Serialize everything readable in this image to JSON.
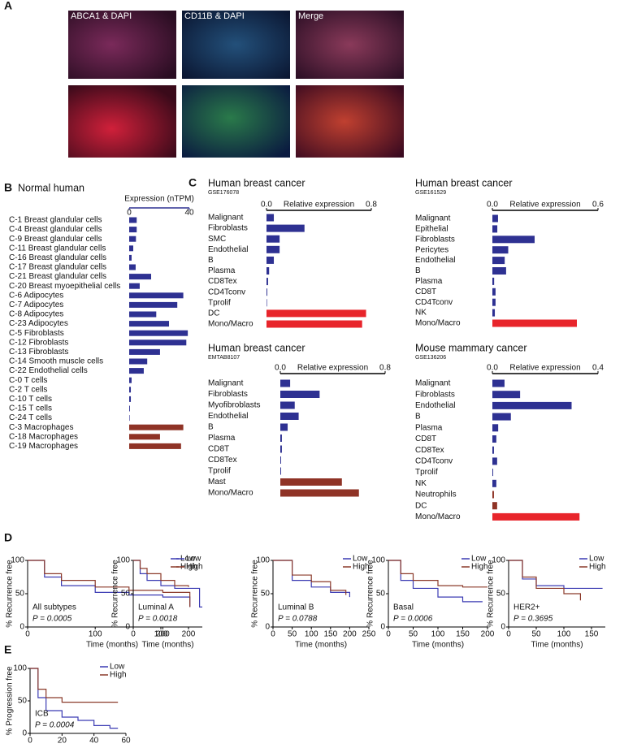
{
  "panel_labels": [
    "A",
    "B",
    "C",
    "D",
    "E"
  ],
  "images": {
    "labels": [
      "ABCA1 & DAPI",
      "CD11B & DAPI",
      "Merge"
    ]
  },
  "chart_data": [
    {
      "type": "hbar",
      "title": "Normal human",
      "xlabel": "Expression (nTPM)",
      "categories": [
        "C-1 Breast glandular cells",
        "C-4 Breast glandular cells",
        "C-9 Breast glandular cells",
        "C-11 Breast glandular cells",
        "C-16 Breast glandular cells",
        "C-17 Breast glandular cells",
        "C-21 Breast glandular cells",
        "C-20 Breast myoepithelial cells",
        "C-6 Adipocytes",
        "C-7 Adipocytes",
        "C-8 Adipocytes",
        "C-23 Adipocytes",
        "C-5 Fibroblasts",
        "C-12 Fibroblasts",
        "C-13 Fibroblasts",
        "C-14 Smooth muscle cells",
        "C-22 Endothelial cells",
        "C-0 T cells",
        "C-2 T cells",
        "C-10 T cells",
        "C-15 T cells",
        "C-24 T cells",
        "C-3 Macrophages",
        "C-18 Macrophages",
        "C-19 Macrophages"
      ],
      "values": [
        5,
        5,
        4.5,
        2.7,
        1.6,
        4.3,
        14.6,
        7,
        36,
        32,
        18,
        26.5,
        39,
        38,
        20.5,
        12,
        9.7,
        1.6,
        1.1,
        1.1,
        0.5,
        0.2,
        36,
        20.5,
        34.5
      ],
      "colors": [
        "#2e3192",
        "#2e3192",
        "#2e3192",
        "#2e3192",
        "#2e3192",
        "#2e3192",
        "#2e3192",
        "#2e3192",
        "#2e3192",
        "#2e3192",
        "#2e3192",
        "#2e3192",
        "#2e3192",
        "#2e3192",
        "#2e3192",
        "#2e3192",
        "#2e3192",
        "#2e3192",
        "#2e3192",
        "#2e3192",
        "#2e3192",
        "#2e3192",
        "#8f3326",
        "#8f3326",
        "#8f3326"
      ],
      "xlim": [
        0,
        40
      ],
      "xticks": [
        0,
        40
      ]
    },
    {
      "type": "hbar",
      "title": "Human breast cancer",
      "subtitle": "GSE176078",
      "xlabel": "Relative expression",
      "categories": [
        "Malignant",
        "Fibroblasts",
        "SMC",
        "Endothelial",
        "B",
        "Plasma",
        "CD8Tex",
        "CD4Tconv",
        "Tprolif",
        "DC",
        "Mono/Macro"
      ],
      "values": [
        0.056,
        0.29,
        0.1,
        0.1,
        0.056,
        0.02,
        0.012,
        0.006,
        0.003,
        0.76,
        0.73
      ],
      "colors": [
        "#2e3192",
        "#2e3192",
        "#2e3192",
        "#2e3192",
        "#2e3192",
        "#2e3192",
        "#2e3192",
        "#2e3192",
        "#2e3192",
        "#e8252b",
        "#e8252b"
      ],
      "xlim": [
        0,
        0.8
      ],
      "xticks": [
        {
          "value": 0,
          "label": "0.0"
        },
        0.8
      ]
    },
    {
      "type": "hbar",
      "title": "Human breast cancer",
      "subtitle": "GSE161529",
      "xlabel": "Relative expression",
      "categories": [
        "Malignant",
        "Epithelial",
        "Fibroblasts",
        "Pericytes",
        "Endothelial",
        "B",
        "Plasma",
        "CD8T",
        "CD4Tconv",
        "NK",
        "Mono/Macro"
      ],
      "values": [
        0.032,
        0.028,
        0.24,
        0.09,
        0.07,
        0.078,
        0.01,
        0.018,
        0.018,
        0.014,
        0.48
      ],
      "colors": [
        "#2e3192",
        "#2e3192",
        "#2e3192",
        "#2e3192",
        "#2e3192",
        "#2e3192",
        "#2e3192",
        "#2e3192",
        "#2e3192",
        "#2e3192",
        "#e8252b"
      ],
      "xlim": [
        0,
        0.6
      ],
      "xticks": [
        {
          "value": 0,
          "label": "0.0"
        },
        0.6
      ]
    },
    {
      "type": "hbar",
      "title": "Human breast cancer",
      "subtitle": "EMTAB8107",
      "xlabel": "Relative expression",
      "categories": [
        "Malignant",
        "Fibroblasts",
        "Myofibroblasts",
        "Endothelial",
        "B",
        "Plasma",
        "CD8T",
        "CD8Tex",
        "Tprolif",
        "Mast",
        "Mono/Macro"
      ],
      "values": [
        0.075,
        0.3,
        0.11,
        0.14,
        0.056,
        0.012,
        0.012,
        0.006,
        0.006,
        0.47,
        0.6
      ],
      "colors": [
        "#2e3192",
        "#2e3192",
        "#2e3192",
        "#2e3192",
        "#2e3192",
        "#2e3192",
        "#2e3192",
        "#2e3192",
        "#2e3192",
        "#8f3326",
        "#8f3326"
      ],
      "xlim": [
        0,
        0.8
      ],
      "xticks": [
        {
          "value": 0,
          "label": "0.0"
        },
        0.8
      ]
    },
    {
      "type": "hbar",
      "title": "Mouse mammary cancer",
      "subtitle": "GSE136206",
      "xlabel": "Relative expression",
      "categories": [
        "Malignant",
        "Fibroblasts",
        "Endothelial",
        "B",
        "Plasma",
        "CD8T",
        "CD8Tex",
        "CD4Tconv",
        "Tprolif",
        "NK",
        "Neutrophils",
        "DC",
        "Mono/Macro"
      ],
      "values": [
        0.046,
        0.105,
        0.3,
        0.07,
        0.022,
        0.015,
        0.006,
        0.018,
        0.003,
        0.015,
        0.006,
        0.018,
        0.33
      ],
      "colors": [
        "#2e3192",
        "#2e3192",
        "#2e3192",
        "#2e3192",
        "#2e3192",
        "#2e3192",
        "#2e3192",
        "#2e3192",
        "#2e3192",
        "#2e3192",
        "#8f3326",
        "#8f3326",
        "#e8252b"
      ],
      "xlim": [
        0,
        0.4
      ],
      "xticks": [
        {
          "value": 0,
          "label": "0.0"
        },
        0.4
      ]
    },
    {
      "type": "km",
      "label": "All subtypes",
      "annotation": "P = 0.0005",
      "xlabel": "Time (months)",
      "ylabel": "% Recurrence free",
      "xlim": [
        0,
        250
      ],
      "ylim": [
        0,
        100
      ],
      "xticks": [
        0,
        100,
        200
      ],
      "yticks": [
        0,
        50,
        100
      ],
      "legend": "upper right",
      "series": [
        {
          "name": "Low",
          "color": "#3b3bb3",
          "x": [
            0,
            25,
            50,
            100,
            150,
            200,
            230,
            240
          ],
          "values": [
            100,
            75,
            62,
            52,
            48,
            45,
            45,
            30
          ]
        },
        {
          "name": "High",
          "color": "#8b3a2a",
          "x": [
            0,
            25,
            50,
            100,
            150,
            200,
            240
          ],
          "values": [
            100,
            80,
            70,
            60,
            55,
            52,
            30
          ]
        }
      ]
    },
    {
      "type": "km",
      "label": "Luminal A",
      "annotation": "P = 0.0018",
      "xlabel": "Time (months)",
      "ylabel": "% Recurrence free",
      "xlim": [
        0,
        250
      ],
      "ylim": [
        0,
        100
      ],
      "xticks": [
        0,
        100,
        200
      ],
      "yticks": [
        0,
        50,
        100
      ],
      "legend": "upper right",
      "series": [
        {
          "name": "Low",
          "color": "#3b3bb3",
          "x": [
            0,
            25,
            50,
            100,
            150,
            200,
            240,
            250
          ],
          "values": [
            100,
            80,
            70,
            62,
            58,
            58,
            30,
            30
          ]
        },
        {
          "name": "High",
          "color": "#8b3a2a",
          "x": [
            0,
            25,
            50,
            100,
            150,
            200
          ],
          "values": [
            100,
            88,
            80,
            70,
            62,
            60
          ]
        }
      ]
    },
    {
      "type": "km",
      "label": "Luminal B",
      "annotation": "P = 0.0788",
      "xlabel": "Time (months)",
      "ylabel": "% Recurrence free",
      "xlim": [
        0,
        250
      ],
      "ylim": [
        0,
        100
      ],
      "xticks": [
        0,
        50,
        100,
        150,
        200,
        250
      ],
      "yticks": [
        0,
        50,
        100
      ],
      "legend": "upper right",
      "series": [
        {
          "name": "Low",
          "color": "#3b3bb3",
          "x": [
            0,
            50,
            100,
            150,
            200
          ],
          "values": [
            100,
            70,
            60,
            52,
            45
          ]
        },
        {
          "name": "High",
          "color": "#8b3a2a",
          "x": [
            0,
            50,
            100,
            150,
            190
          ],
          "values": [
            100,
            78,
            68,
            55,
            48
          ]
        }
      ]
    },
    {
      "type": "km",
      "label": "Basal",
      "annotation": "P = 0.0006",
      "xlabel": "Time (months)",
      "ylabel": "% Recurrence free",
      "xlim": [
        0,
        200
      ],
      "ylim": [
        0,
        100
      ],
      "xticks": [
        0,
        50,
        100,
        150,
        200
      ],
      "yticks": [
        0,
        50,
        100
      ],
      "legend": "upper right",
      "series": [
        {
          "name": "Low",
          "color": "#3b3bb3",
          "x": [
            0,
            25,
            50,
            100,
            150,
            190
          ],
          "values": [
            100,
            70,
            58,
            45,
            38,
            38
          ]
        },
        {
          "name": "High",
          "color": "#8b3a2a",
          "x": [
            0,
            25,
            50,
            100,
            150,
            200
          ],
          "values": [
            100,
            80,
            70,
            62,
            60,
            60
          ]
        }
      ]
    },
    {
      "type": "km",
      "label": "HER2+",
      "annotation": "P = 0.3695",
      "xlabel": "Time (months)",
      "ylabel": "% Recurrence free",
      "xlim": [
        0,
        175
      ],
      "ylim": [
        0,
        100
      ],
      "xticks": [
        0,
        50,
        100,
        150
      ],
      "yticks": [
        0,
        50,
        100
      ],
      "legend": "upper right",
      "series": [
        {
          "name": "Low",
          "color": "#3b3bb3",
          "x": [
            0,
            25,
            50,
            100,
            170
          ],
          "values": [
            100,
            72,
            62,
            58,
            58
          ]
        },
        {
          "name": "High",
          "color": "#8b3a2a",
          "x": [
            0,
            25,
            50,
            100,
            130
          ],
          "values": [
            100,
            75,
            58,
            50,
            40
          ]
        }
      ]
    },
    {
      "type": "km",
      "label": "ICB",
      "annotation": "P = 0.0004",
      "xlabel": "Time (months)",
      "ylabel": "% Progression free",
      "xlim": [
        0,
        60
      ],
      "ylim": [
        0,
        100
      ],
      "xticks": [
        0,
        20,
        40,
        60
      ],
      "yticks": [
        0,
        50,
        100
      ],
      "legend": "upper right",
      "series": [
        {
          "name": "Low",
          "color": "#3b3bb3",
          "x": [
            0,
            5,
            10,
            20,
            30,
            40,
            50,
            55
          ],
          "values": [
            100,
            55,
            35,
            25,
            20,
            12,
            8,
            8
          ]
        },
        {
          "name": "High",
          "color": "#8b3a2a",
          "x": [
            0,
            5,
            10,
            20,
            40,
            55
          ],
          "values": [
            100,
            68,
            55,
            48,
            48,
            48
          ]
        }
      ]
    }
  ]
}
